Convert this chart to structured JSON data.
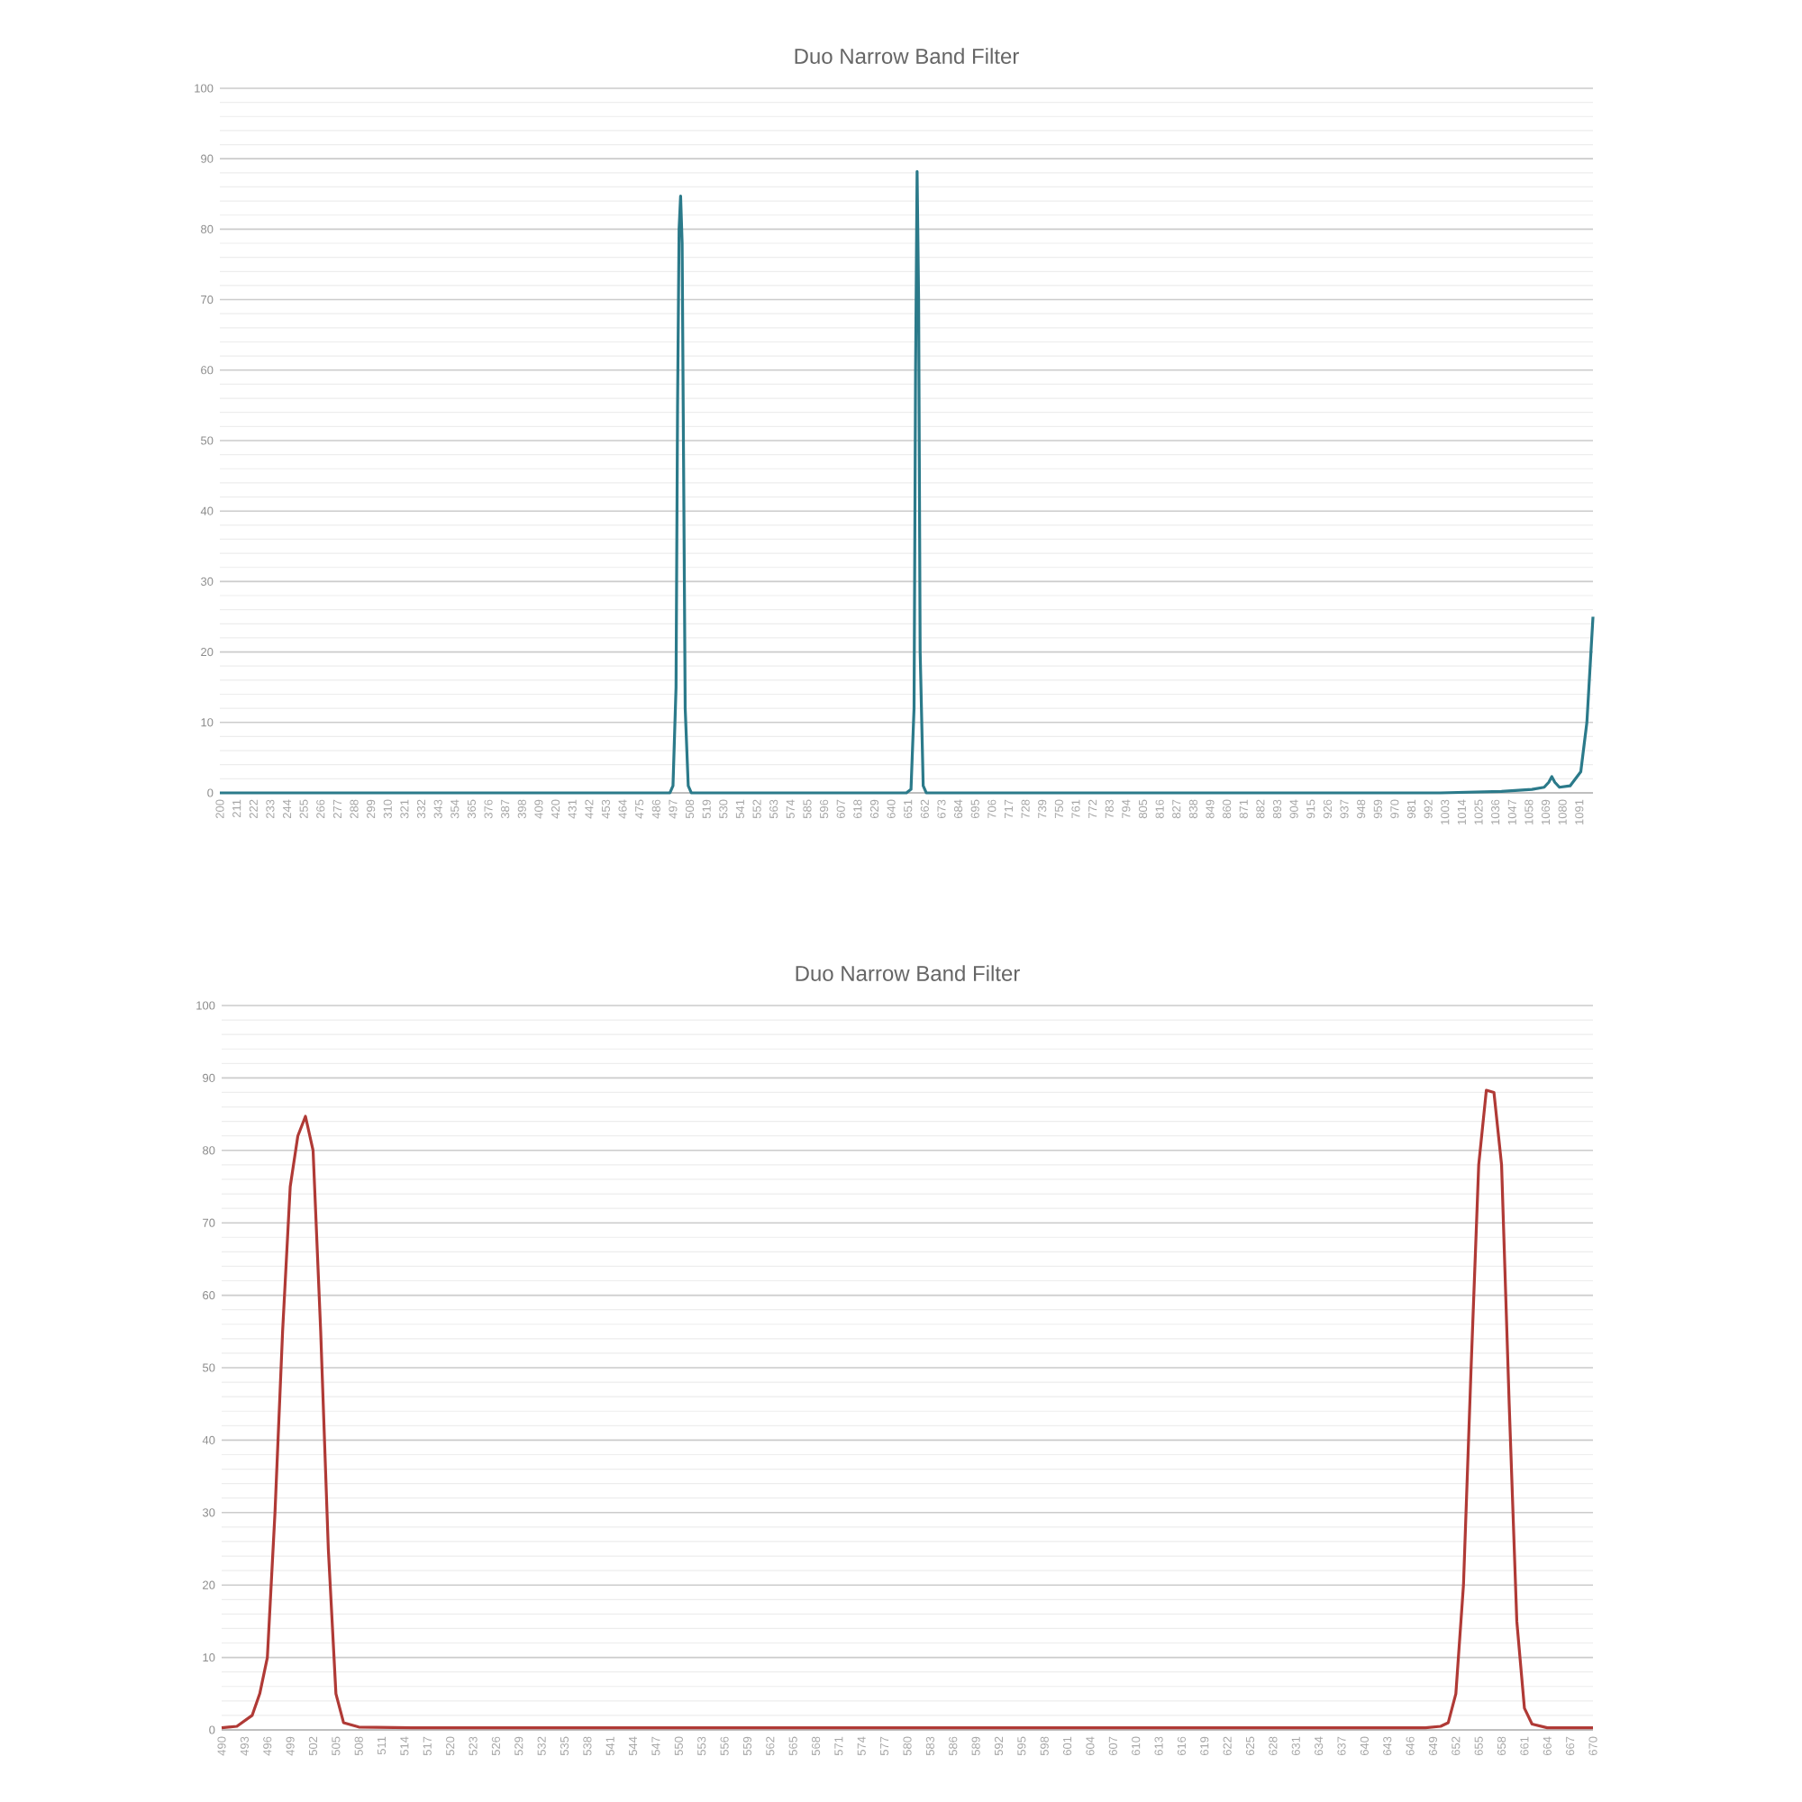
{
  "chart_data": [
    {
      "type": "line",
      "title": "Duo Narrow Band Filter",
      "color": "#2b7a8a",
      "grid": "y",
      "x": [
        200,
        300,
        400,
        480,
        490,
        495,
        497,
        499,
        500,
        501,
        502,
        503,
        504,
        505,
        507,
        509,
        520,
        600,
        640,
        650,
        653,
        655,
        656,
        657,
        658,
        659,
        661,
        663,
        675,
        800,
        1000,
        1040,
        1060,
        1068,
        1071,
        1073,
        1075,
        1078,
        1085,
        1092,
        1096,
        1100
      ],
      "values": [
        0,
        0,
        0,
        0,
        0,
        0,
        1,
        15,
        55,
        80,
        84.7,
        78,
        45,
        12,
        1,
        0,
        0,
        0,
        0,
        0,
        0.5,
        12,
        60,
        88.2,
        70,
        20,
        1,
        0,
        0,
        0,
        0,
        0.2,
        0.5,
        0.8,
        1.5,
        2.3,
        1.5,
        0.8,
        1,
        3,
        10,
        25
      ],
      "xlim": [
        200,
        1100
      ],
      "xticks": [
        200,
        211,
        222,
        233,
        244,
        255,
        266,
        277,
        288,
        299,
        310,
        321,
        332,
        343,
        354,
        365,
        376,
        387,
        398,
        409,
        420,
        431,
        442,
        453,
        464,
        475,
        486,
        497,
        508,
        519,
        530,
        541,
        552,
        563,
        574,
        585,
        596,
        607,
        618,
        629,
        640,
        651,
        662,
        673,
        684,
        695,
        706,
        717,
        728,
        739,
        750,
        761,
        772,
        783,
        794,
        805,
        816,
        827,
        838,
        849,
        860,
        871,
        882,
        893,
        904,
        915,
        926,
        937,
        948,
        959,
        970,
        981,
        992,
        1003,
        1014,
        1025,
        1036,
        1047,
        1058,
        1069,
        1080,
        1091
      ],
      "ylim": [
        0,
        100
      ],
      "yticks": [
        0,
        10,
        20,
        30,
        40,
        50,
        60,
        70,
        80,
        90,
        100
      ]
    },
    {
      "type": "line",
      "title": "Duo Narrow Band Filter",
      "color": "#b03a36",
      "grid": "y",
      "x": [
        490,
        492,
        494,
        495,
        496,
        497,
        498,
        499,
        500,
        501,
        502,
        503,
        504,
        505,
        506,
        508,
        515,
        600,
        640,
        648,
        650,
        651,
        652,
        653,
        654,
        655,
        656,
        657,
        658,
        659,
        660,
        661,
        662,
        664,
        670
      ],
      "values": [
        0.3,
        0.5,
        2,
        5,
        10,
        30,
        55,
        75,
        82,
        84.7,
        80,
        55,
        25,
        5,
        1,
        0.4,
        0.3,
        0.3,
        0.3,
        0.3,
        0.5,
        1,
        5,
        20,
        50,
        78,
        88.3,
        88,
        78,
        45,
        15,
        3,
        0.8,
        0.3,
        0.3
      ],
      "xlim": [
        490,
        670
      ],
      "xticks": [
        490,
        493,
        496,
        499,
        502,
        505,
        508,
        511,
        514,
        517,
        520,
        523,
        526,
        529,
        532,
        535,
        538,
        541,
        544,
        547,
        550,
        553,
        556,
        559,
        562,
        565,
        568,
        571,
        574,
        577,
        580,
        583,
        586,
        589,
        592,
        595,
        598,
        601,
        604,
        607,
        610,
        613,
        616,
        619,
        622,
        625,
        628,
        631,
        634,
        637,
        640,
        643,
        646,
        649,
        652,
        655,
        658,
        661,
        664,
        667,
        670
      ],
      "ylim": [
        0,
        100
      ],
      "yticks": [
        0,
        10,
        20,
        30,
        40,
        50,
        60,
        70,
        80,
        90,
        100
      ]
    }
  ]
}
